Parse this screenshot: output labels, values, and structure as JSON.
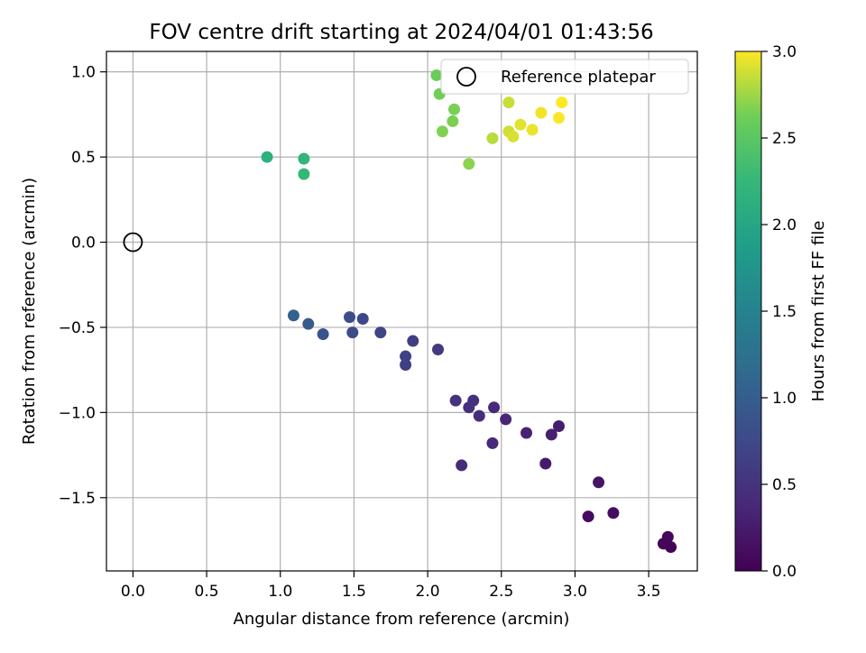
{
  "chart_data": {
    "type": "scatter",
    "title": "FOV centre drift starting at 2024/04/01 01:43:56",
    "xlabel": "Angular distance from reference (arcmin)",
    "ylabel": "Rotation from reference (arcmin)",
    "xlim": [
      -0.18,
      3.83
    ],
    "ylim": [
      -1.93,
      1.12
    ],
    "x_ticks": [
      0.0,
      0.5,
      1.0,
      1.5,
      2.0,
      2.5,
      3.0,
      3.5
    ],
    "x_tick_labels": [
      "0.0",
      "0.5",
      "1.0",
      "1.5",
      "2.0",
      "2.5",
      "3.0",
      "3.5"
    ],
    "y_ticks": [
      -1.5,
      -1.0,
      -0.5,
      0.0,
      0.5,
      1.0
    ],
    "y_tick_labels": [
      "−1.5",
      "−1.0",
      "−0.5",
      "0.0",
      "0.5",
      "1.0"
    ],
    "grid": true,
    "legend": {
      "position": "top-right",
      "entries": [
        "Reference platepar"
      ]
    },
    "reference_point": {
      "name": "Reference platepar",
      "x": 0.0,
      "y": 0.0,
      "marker": "open-circle"
    },
    "colorbar": {
      "label": "Hours from first FF file",
      "colormap": "viridis",
      "range": [
        0.0,
        3.0
      ],
      "ticks": [
        0.0,
        0.5,
        1.0,
        1.5,
        2.0,
        2.5,
        3.0
      ],
      "tick_labels": [
        "0.0",
        "0.5",
        "1.0",
        "1.5",
        "2.0",
        "2.5",
        "3.0"
      ]
    },
    "points": [
      {
        "x": 3.6,
        "y": -1.77,
        "c": 0.05
      },
      {
        "x": 3.63,
        "y": -1.73,
        "c": 0.06
      },
      {
        "x": 3.65,
        "y": -1.79,
        "c": 0.04
      },
      {
        "x": 3.09,
        "y": -1.61,
        "c": 0.1
      },
      {
        "x": 3.26,
        "y": -1.59,
        "c": 0.12
      },
      {
        "x": 3.16,
        "y": -1.41,
        "c": 0.18
      },
      {
        "x": 2.8,
        "y": -1.3,
        "c": 0.25
      },
      {
        "x": 2.89,
        "y": -1.08,
        "c": 0.28
      },
      {
        "x": 2.84,
        "y": -1.13,
        "c": 0.3
      },
      {
        "x": 2.67,
        "y": -1.12,
        "c": 0.33
      },
      {
        "x": 2.53,
        "y": -1.04,
        "c": 0.36
      },
      {
        "x": 2.45,
        "y": -0.97,
        "c": 0.38
      },
      {
        "x": 2.44,
        "y": -1.18,
        "c": 0.4
      },
      {
        "x": 2.23,
        "y": -1.31,
        "c": 0.42
      },
      {
        "x": 2.35,
        "y": -1.02,
        "c": 0.44
      },
      {
        "x": 2.31,
        "y": -0.93,
        "c": 0.46
      },
      {
        "x": 2.28,
        "y": -0.97,
        "c": 0.48
      },
      {
        "x": 2.19,
        "y": -0.93,
        "c": 0.5
      },
      {
        "x": 2.07,
        "y": -0.63,
        "c": 0.58
      },
      {
        "x": 1.9,
        "y": -0.58,
        "c": 0.62
      },
      {
        "x": 1.85,
        "y": -0.72,
        "c": 0.64
      },
      {
        "x": 1.85,
        "y": -0.67,
        "c": 0.66
      },
      {
        "x": 1.68,
        "y": -0.53,
        "c": 0.7
      },
      {
        "x": 1.56,
        "y": -0.45,
        "c": 0.74
      },
      {
        "x": 1.49,
        "y": -0.53,
        "c": 0.77
      },
      {
        "x": 1.47,
        "y": -0.44,
        "c": 0.8
      },
      {
        "x": 1.29,
        "y": -0.54,
        "c": 0.88
      },
      {
        "x": 1.19,
        "y": -0.48,
        "c": 0.95
      },
      {
        "x": 1.09,
        "y": -0.43,
        "c": 1.05
      },
      {
        "x": 0.91,
        "y": 0.5,
        "c": 2.15
      },
      {
        "x": 1.16,
        "y": 0.49,
        "c": 2.2
      },
      {
        "x": 1.16,
        "y": 0.4,
        "c": 2.25
      },
      {
        "x": 2.06,
        "y": 0.98,
        "c": 2.6
      },
      {
        "x": 2.08,
        "y": 0.87,
        "c": 2.63
      },
      {
        "x": 2.18,
        "y": 0.78,
        "c": 2.65
      },
      {
        "x": 2.17,
        "y": 0.71,
        "c": 2.66
      },
      {
        "x": 2.1,
        "y": 0.65,
        "c": 2.67
      },
      {
        "x": 2.28,
        "y": 0.46,
        "c": 2.7
      },
      {
        "x": 2.44,
        "y": 0.61,
        "c": 2.82
      },
      {
        "x": 2.55,
        "y": 0.82,
        "c": 2.86
      },
      {
        "x": 2.55,
        "y": 0.65,
        "c": 2.88
      },
      {
        "x": 2.58,
        "y": 0.62,
        "c": 2.9
      },
      {
        "x": 2.63,
        "y": 0.69,
        "c": 2.93
      },
      {
        "x": 2.71,
        "y": 0.66,
        "c": 2.95
      },
      {
        "x": 2.77,
        "y": 0.76,
        "c": 2.97
      },
      {
        "x": 2.89,
        "y": 0.73,
        "c": 2.99
      },
      {
        "x": 2.91,
        "y": 0.82,
        "c": 3.0
      }
    ]
  }
}
